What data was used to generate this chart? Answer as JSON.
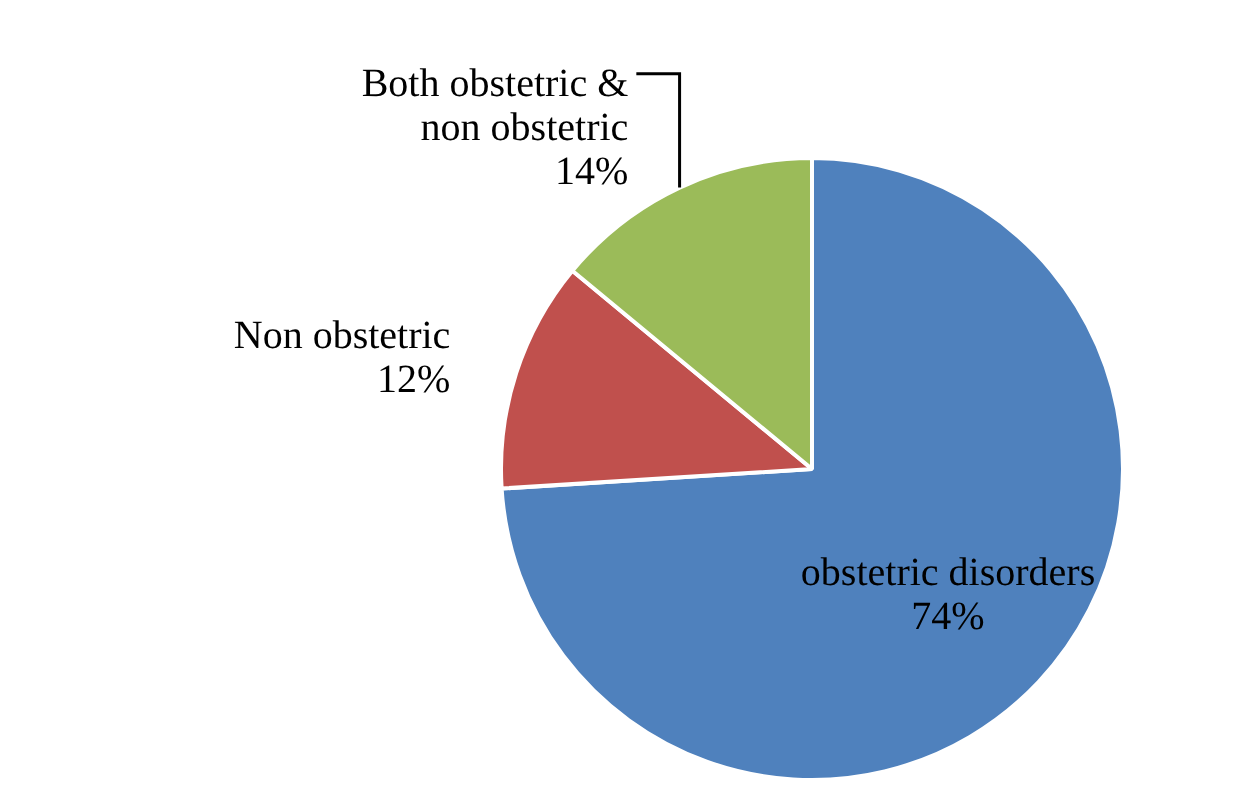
{
  "chart_data": {
    "type": "pie",
    "categories": [
      "obstetric disorders",
      "Non obstetric",
      "Both obstetric & non obstetric"
    ],
    "values": [
      74,
      12,
      14
    ],
    "value_labels": [
      "74%",
      "12%",
      "14%"
    ],
    "colors": [
      "#4f81bd",
      "#c0504d",
      "#9bbb59"
    ],
    "legend": false
  }
}
